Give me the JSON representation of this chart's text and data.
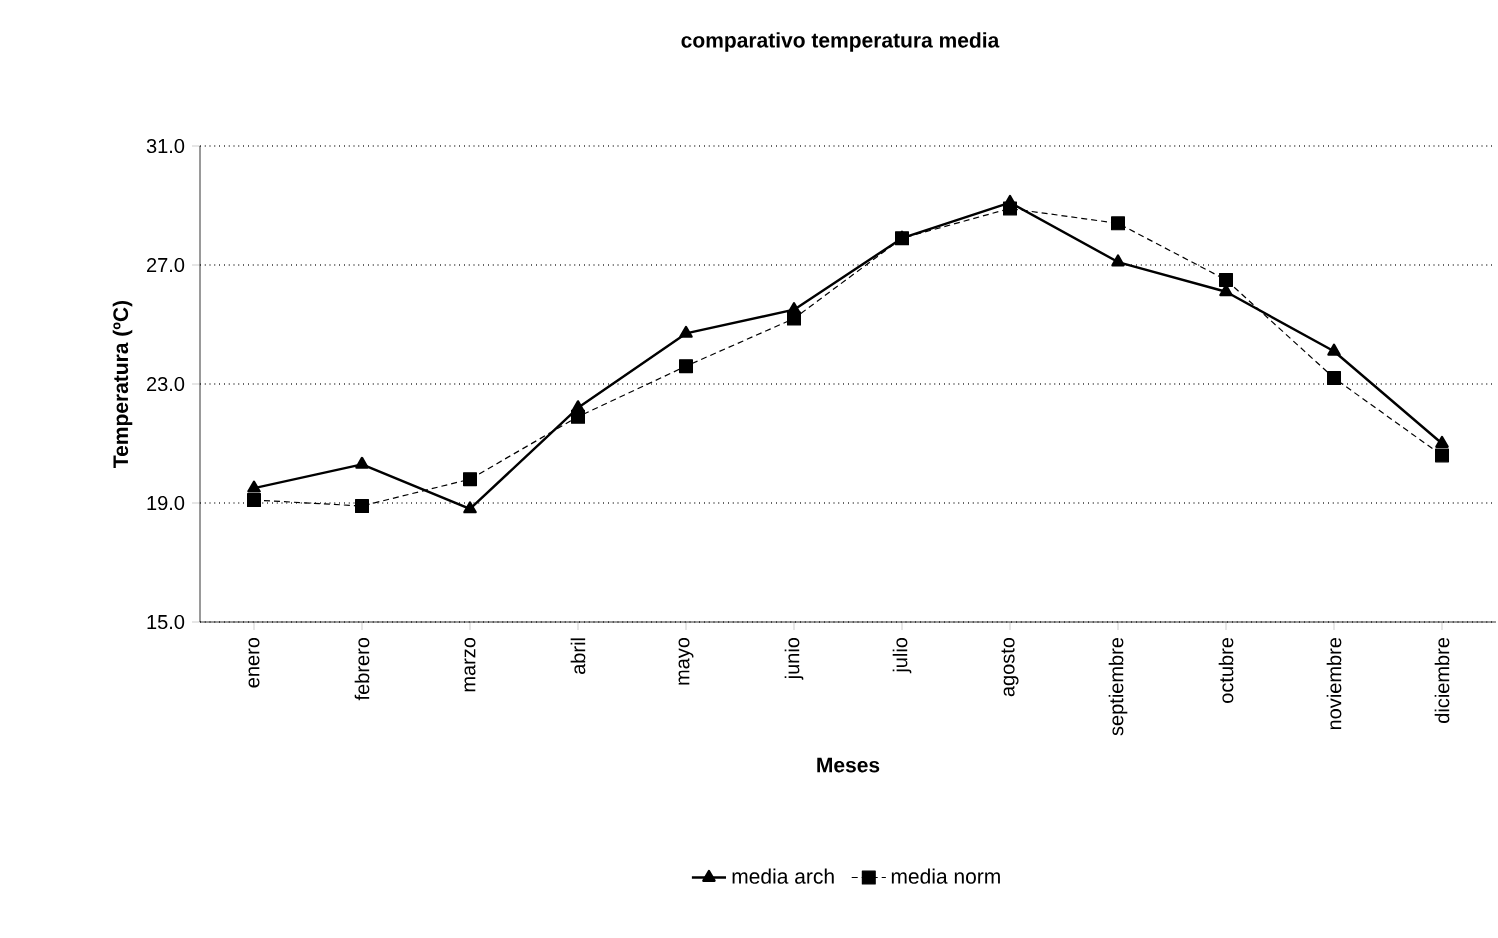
{
  "chart_data": {
    "type": "line",
    "title": "comparativo temperatura media",
    "xlabel": "Meses",
    "ylabel": "Temperatura (ºC)",
    "categories": [
      "enero",
      "febrero",
      "marzo",
      "abril",
      "mayo",
      "junio",
      "julio",
      "agosto",
      "septiembre",
      "octubre",
      "noviembre",
      "diciembre"
    ],
    "series": [
      {
        "name": "media arch",
        "color": "#000000",
        "marker": "triangle",
        "line_style": "solid",
        "values": [
          19.5,
          20.3,
          18.8,
          22.2,
          24.7,
          25.5,
          27.9,
          29.1,
          27.1,
          26.1,
          24.1,
          21.0
        ]
      },
      {
        "name": "media norm",
        "color": "#000000",
        "marker": "square",
        "line_style": "dashed",
        "values": [
          19.1,
          18.9,
          19.8,
          21.9,
          23.6,
          25.2,
          27.9,
          28.9,
          28.4,
          26.5,
          23.2,
          20.6
        ]
      }
    ],
    "ylim": [
      15,
      31
    ],
    "yticks": [
      {
        "value": 15,
        "label": "15.0"
      },
      {
        "value": 19,
        "label": "19.0"
      },
      {
        "value": 23,
        "label": "23.0"
      },
      {
        "value": 27,
        "label": "27.0"
      },
      {
        "value": 31,
        "label": "31.0"
      }
    ],
    "grid": "y",
    "legend": "bottom"
  }
}
